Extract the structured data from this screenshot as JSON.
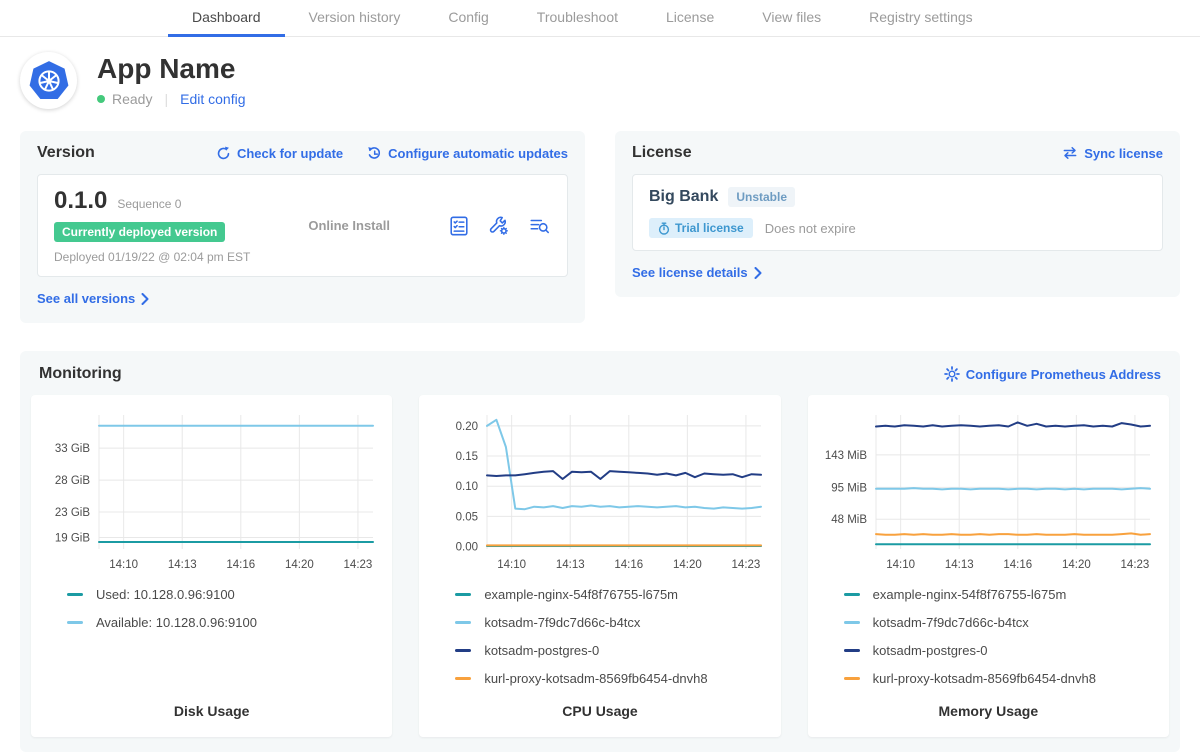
{
  "nav": {
    "tabs": [
      {
        "label": "Dashboard",
        "active": true
      },
      {
        "label": "Version history",
        "active": false
      },
      {
        "label": "Config",
        "active": false
      },
      {
        "label": "Troubleshoot",
        "active": false
      },
      {
        "label": "License",
        "active": false
      },
      {
        "label": "View files",
        "active": false
      },
      {
        "label": "Registry settings",
        "active": false
      }
    ]
  },
  "header": {
    "app_name": "App Name",
    "status": "Ready",
    "edit_config": "Edit config"
  },
  "version_card": {
    "title": "Version",
    "check_for_update": "Check for update",
    "configure_auto_updates": "Configure automatic updates",
    "version": "0.1.0",
    "sequence": "Sequence 0",
    "deployed_badge": "Currently deployed version",
    "deployed_at": "Deployed 01/19/22 @ 02:04 pm EST",
    "install_type": "Online Install",
    "see_all": "See all versions"
  },
  "license_card": {
    "title": "License",
    "sync": "Sync license",
    "assignee": "Big Bank",
    "channel": "Unstable",
    "type_badge": "Trial license",
    "expiry": "Does not expire",
    "see_details": "See license details"
  },
  "monitoring": {
    "title": "Monitoring",
    "configure_prometheus": "Configure Prometheus Address"
  },
  "colors": {
    "link_blue": "#326de6",
    "active_tab_underline": "#326de6",
    "status_green": "#44c97c",
    "deployed_badge_green": "#44c990",
    "card_bg": "#f5f8f9",
    "series_teal": "#1b9ba3",
    "series_light_blue": "#7ec8e8",
    "series_navy": "#223d85",
    "series_orange": "#f8a13d"
  },
  "chart_data": [
    {
      "type": "line",
      "title": "Disk Usage",
      "x_ticks": [
        "14:10",
        "14:13",
        "14:16",
        "14:20",
        "14:23"
      ],
      "y_ticks": [
        {
          "label": "33 GiB",
          "value": 33
        },
        {
          "label": "28 GiB",
          "value": 28
        },
        {
          "label": "23 GiB",
          "value": 23
        },
        {
          "label": "19 GiB",
          "value": 19
        }
      ],
      "ylim": [
        17.2,
        38.2
      ],
      "grid": true,
      "legend_position": "bottom-left",
      "series": [
        {
          "name": "Used: 10.128.0.96:9100",
          "color": "#1b9ba3",
          "values": [
            18.3,
            18.3,
            18.3,
            18.3,
            18.3,
            18.3,
            18.3,
            18.3,
            18.3,
            18.3,
            18.3,
            18.3,
            18.3,
            18.3,
            18.3,
            18.3,
            18.3,
            18.3,
            18.3,
            18.3,
            18.3,
            18.3,
            18.3,
            18.3,
            18.3,
            18.3,
            18.3,
            18.3,
            18.3,
            18.3
          ]
        },
        {
          "name": "Available: 10.128.0.96:9100",
          "color": "#7ec8e8",
          "values": [
            36.5,
            36.5,
            36.5,
            36.5,
            36.5,
            36.5,
            36.5,
            36.5,
            36.5,
            36.5,
            36.5,
            36.5,
            36.5,
            36.5,
            36.5,
            36.5,
            36.5,
            36.5,
            36.5,
            36.5,
            36.5,
            36.5,
            36.5,
            36.5,
            36.5,
            36.5,
            36.5,
            36.5,
            36.5,
            36.5
          ]
        }
      ]
    },
    {
      "type": "line",
      "title": "CPU Usage",
      "x_ticks": [
        "14:10",
        "14:13",
        "14:16",
        "14:20",
        "14:23"
      ],
      "y_ticks": [
        {
          "label": "0.20",
          "value": 0.2
        },
        {
          "label": "0.15",
          "value": 0.15
        },
        {
          "label": "0.10",
          "value": 0.1
        },
        {
          "label": "0.05",
          "value": 0.05
        },
        {
          "label": "0.00",
          "value": 0.0
        }
      ],
      "ylim": [
        -0.004,
        0.218
      ],
      "grid": true,
      "legend_position": "bottom-left",
      "series": [
        {
          "name": "example-nginx-54f8f76755-l675m",
          "color": "#1b9ba3",
          "values": [
            0.001,
            0.001,
            0.001,
            0.001,
            0.001,
            0.001,
            0.001,
            0.001,
            0.001,
            0.001,
            0.001,
            0.001,
            0.001,
            0.001,
            0.001,
            0.001,
            0.001,
            0.001,
            0.001,
            0.001,
            0.001,
            0.001,
            0.001,
            0.001,
            0.001,
            0.001,
            0.001,
            0.001,
            0.001,
            0.001
          ]
        },
        {
          "name": "kotsadm-7f9dc7d66c-b4tcx",
          "color": "#7ec8e8",
          "values": [
            0.2,
            0.21,
            0.165,
            0.063,
            0.062,
            0.066,
            0.065,
            0.067,
            0.064,
            0.067,
            0.066,
            0.068,
            0.066,
            0.067,
            0.065,
            0.066,
            0.067,
            0.066,
            0.065,
            0.066,
            0.067,
            0.065,
            0.066,
            0.064,
            0.063,
            0.065,
            0.064,
            0.063,
            0.064,
            0.066
          ]
        },
        {
          "name": "kotsadm-postgres-0",
          "color": "#223d85",
          "values": [
            0.118,
            0.117,
            0.118,
            0.118,
            0.12,
            0.122,
            0.124,
            0.125,
            0.112,
            0.124,
            0.123,
            0.124,
            0.112,
            0.125,
            0.124,
            0.123,
            0.122,
            0.121,
            0.119,
            0.121,
            0.118,
            0.122,
            0.115,
            0.121,
            0.12,
            0.119,
            0.12,
            0.115,
            0.12,
            0.119
          ]
        },
        {
          "name": "kurl-proxy-kotsadm-8569fb6454-dnvh8",
          "color": "#f8a13d",
          "values": [
            0.002,
            0.002,
            0.002,
            0.002,
            0.002,
            0.002,
            0.002,
            0.002,
            0.002,
            0.002,
            0.002,
            0.002,
            0.002,
            0.002,
            0.002,
            0.002,
            0.002,
            0.002,
            0.002,
            0.002,
            0.002,
            0.002,
            0.002,
            0.002,
            0.002,
            0.002,
            0.002,
            0.002,
            0.002,
            0.002
          ]
        }
      ]
    },
    {
      "type": "line",
      "title": "Memory Usage",
      "x_ticks": [
        "14:10",
        "14:13",
        "14:16",
        "14:20",
        "14:23"
      ],
      "y_ticks": [
        {
          "label": "143 MiB",
          "value": 143
        },
        {
          "label": "95 MiB",
          "value": 95
        },
        {
          "label": "48 MiB",
          "value": 48
        }
      ],
      "ylim": [
        4,
        202
      ],
      "grid": true,
      "legend_position": "bottom-left",
      "series": [
        {
          "name": "example-nginx-54f8f76755-l675m",
          "color": "#1b9ba3",
          "values": [
            11,
            11,
            11,
            11,
            11,
            11,
            11,
            11,
            11,
            11,
            11,
            11,
            11,
            11,
            11,
            11,
            11,
            11,
            11,
            11,
            11,
            11,
            11,
            11,
            11,
            11,
            11,
            11,
            11,
            11
          ]
        },
        {
          "name": "kotsadm-7f9dc7d66c-b4tcx",
          "color": "#7ec8e8",
          "values": [
            93,
            93,
            93,
            93,
            94,
            93,
            93,
            92,
            93,
            93,
            92,
            93,
            93,
            93,
            92,
            93,
            93,
            92,
            93,
            93,
            92,
            93,
            92,
            93,
            93,
            93,
            92,
            93,
            94,
            93
          ]
        },
        {
          "name": "kotsadm-postgres-0",
          "color": "#223d85",
          "values": [
            185,
            186,
            185,
            187,
            186,
            185,
            187,
            185,
            186,
            187,
            186,
            185,
            186,
            187,
            185,
            191,
            186,
            189,
            185,
            186,
            185,
            186,
            187,
            185,
            186,
            185,
            190,
            188,
            185,
            186
          ]
        },
        {
          "name": "kurl-proxy-kotsadm-8569fb6454-dnvh8",
          "color": "#f8a13d",
          "values": [
            26,
            25,
            25,
            26,
            25,
            26,
            25,
            25,
            26,
            25,
            25,
            26,
            25,
            26,
            26,
            25,
            25,
            26,
            25,
            25,
            25,
            26,
            25,
            25,
            25,
            25,
            26,
            27,
            25,
            26
          ]
        }
      ]
    }
  ]
}
